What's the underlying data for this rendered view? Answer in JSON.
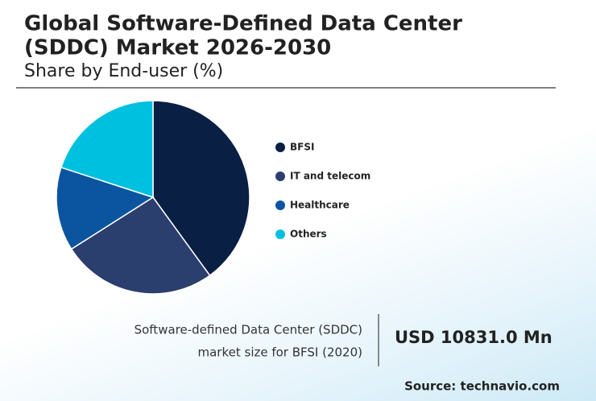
{
  "chart_data": {
    "type": "pie",
    "title": [
      "Global Software-Defined Data Center",
      "(SDDC) Market 2026-2030"
    ],
    "subtitle": "Share by End-user (%)",
    "categories": [
      "BFSI",
      "IT and telecom",
      "Healthcare",
      "Others"
    ],
    "values": [
      40,
      26,
      14,
      20
    ],
    "colors": [
      "#0a1f44",
      "#2b3f6e",
      "#0b55a0",
      "#00c0e0"
    ]
  },
  "callout": {
    "label_lines": [
      "Software-defined Data Center (SDDC)",
      "market size for BFSI (2020)"
    ],
    "value": "USD 10831.0 Mn"
  },
  "source": "Source: technavio.com"
}
